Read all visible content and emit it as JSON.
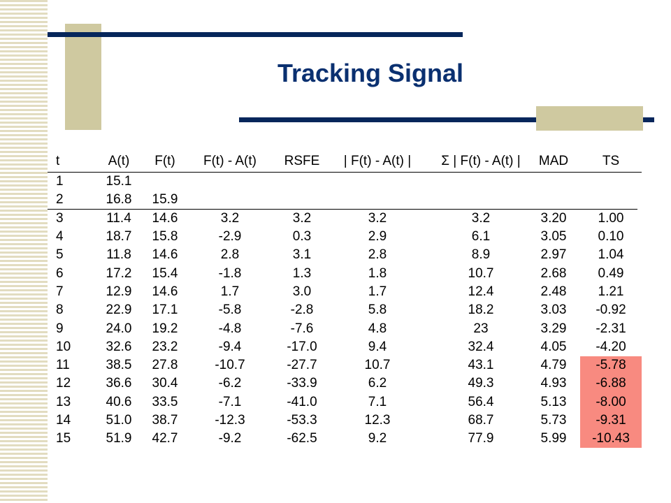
{
  "slide": {
    "title": "Tracking Signal"
  },
  "colors": {
    "navy": "#06265b",
    "title_color": "#0a3070",
    "tan": "#cfc9a0",
    "highlight": "#f88a80"
  },
  "table": {
    "headers": [
      "t",
      "A(t)",
      "F(t)",
      "F(t) - A(t)",
      "RSFE",
      "| F(t) - A(t) |",
      "Σ | F(t) - A(t) |",
      "MAD",
      "TS"
    ],
    "rows": [
      [
        "1",
        "15.1",
        "",
        "",
        "",
        "",
        "",
        "",
        ""
      ],
      [
        "2",
        "16.8",
        "15.9",
        "",
        "",
        "",
        "",
        "",
        ""
      ],
      [
        "3",
        "11.4",
        "14.6",
        "3.2",
        "3.2",
        "3.2",
        "3.2",
        "3.20",
        "1.00"
      ],
      [
        "4",
        "18.7",
        "15.8",
        "-2.9",
        "0.3",
        "2.9",
        "6.1",
        "3.05",
        "0.10"
      ],
      [
        "5",
        "11.8",
        "14.6",
        "2.8",
        "3.1",
        "2.8",
        "8.9",
        "2.97",
        "1.04"
      ],
      [
        "6",
        "17.2",
        "15.4",
        "-1.8",
        "1.3",
        "1.8",
        "10.7",
        "2.68",
        "0.49"
      ],
      [
        "7",
        "12.9",
        "14.6",
        "1.7",
        "3.0",
        "1.7",
        "12.4",
        "2.48",
        "1.21"
      ],
      [
        "8",
        "22.9",
        "17.1",
        "-5.8",
        "-2.8",
        "5.8",
        "18.2",
        "3.03",
        "-0.92"
      ],
      [
        "9",
        "24.0",
        "19.2",
        "-4.8",
        "-7.6",
        "4.8",
        "23",
        "3.29",
        "-2.31"
      ],
      [
        "10",
        "32.6",
        "23.2",
        "-9.4",
        "-17.0",
        "9.4",
        "32.4",
        "4.05",
        "-4.20"
      ],
      [
        "11",
        "38.5",
        "27.8",
        "-10.7",
        "-27.7",
        "10.7",
        "43.1",
        "4.79",
        "-5.78"
      ],
      [
        "12",
        "36.6",
        "30.4",
        "-6.2",
        "-33.9",
        "6.2",
        "49.3",
        "4.93",
        "-6.88"
      ],
      [
        "13",
        "40.6",
        "33.5",
        "-7.1",
        "-41.0",
        "7.1",
        "56.4",
        "5.13",
        "-8.00"
      ],
      [
        "14",
        "51.0",
        "38.7",
        "-12.3",
        "-53.3",
        "12.3",
        "68.7",
        "5.73",
        "-9.31"
      ],
      [
        "15",
        "51.9",
        "42.7",
        "-9.2",
        "-62.5",
        "9.2",
        "77.9",
        "5.99",
        "-10.43"
      ]
    ],
    "highlighted_ts_rows": [
      10,
      11,
      12,
      13,
      14
    ]
  }
}
